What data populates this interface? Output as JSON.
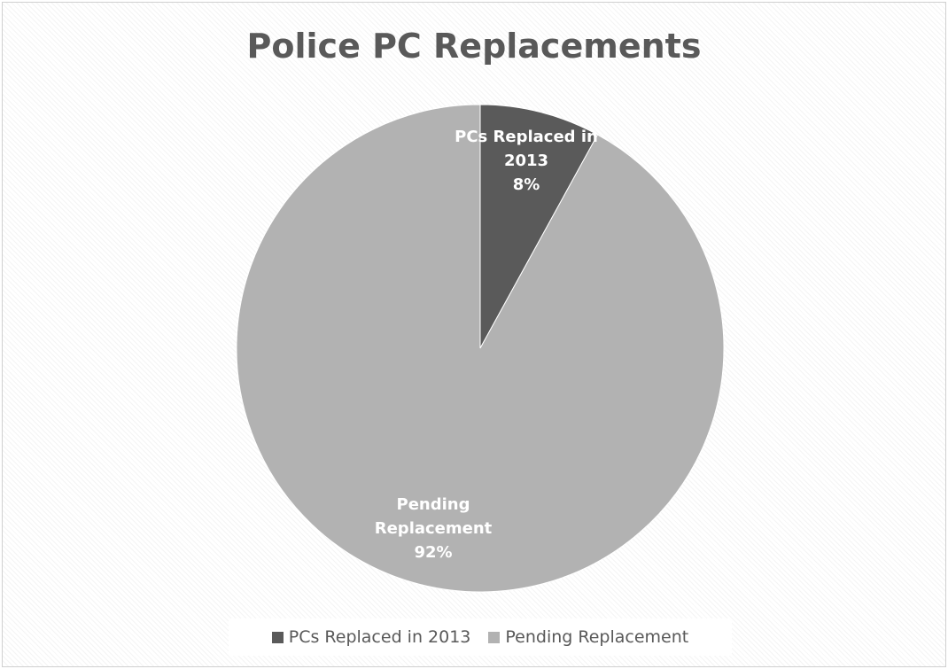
{
  "chart_data": {
    "type": "pie",
    "title": "Police PC Replacements",
    "slices": [
      {
        "label": "PCs Replaced in 2013",
        "value": 8,
        "display": "8%",
        "color": "#5a5a5a"
      },
      {
        "label": "Pending Replacement",
        "value": 92,
        "display": "92%",
        "color": "#b2b2b2"
      }
    ],
    "data_labels": [
      {
        "lines": [
          "PCs Replaced in",
          "2013",
          "8%"
        ]
      },
      {
        "lines": [
          "Pending",
          "Replacement",
          "92%"
        ]
      }
    ],
    "legend": {
      "placement": "bottom",
      "entries": [
        "PCs Replaced in 2013",
        "Pending Replacement"
      ]
    }
  }
}
